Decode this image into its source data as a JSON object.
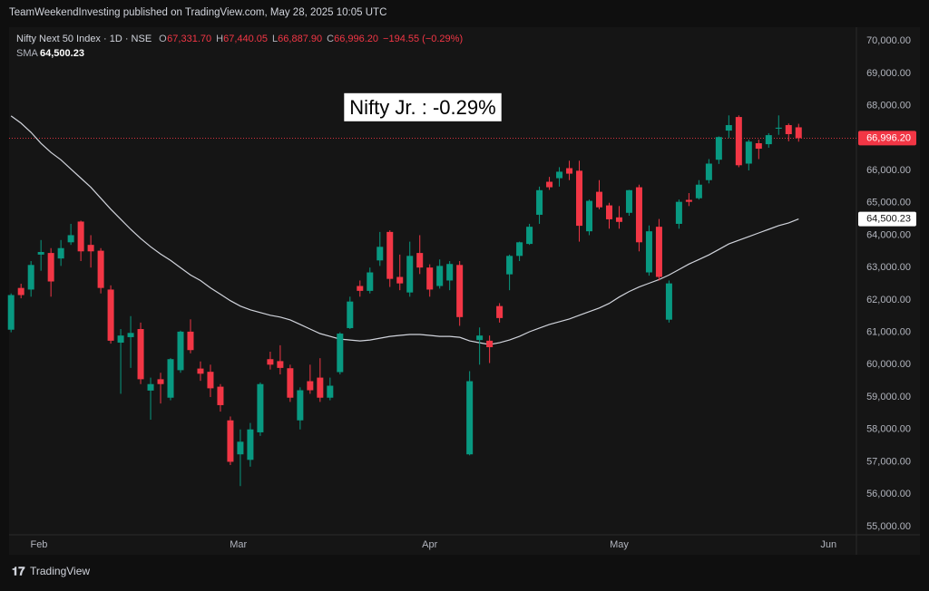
{
  "published": "TeamWeekendInvesting published on TradingView.com, May 28, 2025 10:05 UTC",
  "brand": "TradingView",
  "header": {
    "symbol": "Nifty Next 50 Index · 1D · NSE",
    "ohlc": [
      {
        "key": "O",
        "value": "67,331.70"
      },
      {
        "key": "H",
        "value": "67,440.05"
      },
      {
        "key": "L",
        "value": "66,887.90"
      },
      {
        "key": "C",
        "value": "66,996.20"
      }
    ],
    "change": "−194.55 (−0.29%)",
    "indicator": "SMA",
    "indicator_value": "64,500.23"
  },
  "chart_data": {
    "type": "candlestick",
    "annotation": "Nifty Jr. : -0.29%",
    "up_color": "#089981",
    "down_color": "#f23645",
    "categories": [
      null,
      null,
      null,
      null,
      null,
      null,
      null,
      null,
      null,
      null,
      null,
      null,
      null,
      null,
      null,
      null,
      null,
      null,
      null,
      null,
      null,
      null,
      null,
      null,
      null,
      null,
      null,
      null,
      null,
      null,
      null,
      null,
      null,
      null,
      null,
      null,
      null,
      null,
      null,
      null,
      null,
      null,
      null,
      null,
      null,
      null,
      null,
      null,
      null,
      null,
      null,
      null,
      null,
      null,
      null,
      null,
      null,
      null,
      null,
      null,
      null,
      null,
      null,
      null,
      null,
      null,
      null,
      null,
      null,
      null,
      null,
      null,
      null,
      null,
      null,
      null,
      null,
      null,
      null,
      null
    ],
    "open": [
      61080,
      62370,
      62320,
      63400,
      63450,
      63280,
      63780,
      64420,
      63700,
      63520,
      62320,
      60680,
      60850,
      61100,
      59200,
      59550,
      58980,
      59830,
      61020,
      59880,
      59780,
      59320,
      58280,
      57230,
      57060,
      57910,
      60170,
      60110,
      59890,
      58280,
      59490,
      59600,
      58980,
      59770,
      61130,
      62430,
      62280,
      63220,
      64100,
      62710,
      62230,
      63450,
      63000,
      62430,
      62600,
      63080,
      57230,
      60760,
      60740,
      61810,
      62790,
      63360,
      63730,
      64630,
      65650,
      65760,
      66070,
      65990,
      64120,
      65340,
      64920,
      64550,
      64690,
      65480,
      62850,
      64260,
      61390,
      64350,
      65090,
      65140,
      65700,
      66330,
      67230,
      67650,
      66210,
      66840,
      66810,
      67290,
      67400,
      67331.7
    ],
    "high": [
      62200,
      62500,
      63200,
      63850,
      63600,
      63850,
      64350,
      64450,
      64000,
      63600,
      62450,
      61100,
      61500,
      61300,
      59600,
      59750,
      60200,
      61050,
      61400,
      60100,
      60000,
      59400,
      58400,
      58000,
      58200,
      59450,
      60400,
      60600,
      60000,
      59300,
      60000,
      60200,
      59600,
      61000,
      62100,
      62600,
      63000,
      64100,
      64150,
      63400,
      63800,
      64000,
      63100,
      63250,
      63200,
      63200,
      59800,
      61150,
      60900,
      61900,
      63400,
      63800,
      64350,
      65500,
      65800,
      66100,
      66300,
      66300,
      65100,
      65700,
      65000,
      64900,
      65400,
      65560,
      64300,
      64500,
      62600,
      65100,
      65300,
      65700,
      66350,
      67050,
      67700,
      67700,
      66950,
      66950,
      67150,
      67700,
      67450,
      67440.05
    ],
    "low": [
      61000,
      62050,
      62100,
      62900,
      62100,
      63050,
      63700,
      63200,
      63000,
      62200,
      60650,
      59100,
      59900,
      59400,
      58300,
      58800,
      58900,
      59750,
      60350,
      59500,
      59000,
      58550,
      56900,
      56250,
      56850,
      57800,
      59850,
      59700,
      58850,
      58000,
      59100,
      58850,
      58900,
      59700,
      61100,
      62100,
      62200,
      63050,
      62400,
      62300,
      62100,
      62800,
      62100,
      62350,
      62300,
      61200,
      57200,
      60000,
      60050,
      61300,
      62300,
      63200,
      63700,
      64350,
      65400,
      65500,
      65700,
      63800,
      64000,
      64800,
      64200,
      64200,
      64600,
      63500,
      62750,
      62600,
      61300,
      64200,
      64900,
      65100,
      65600,
      66200,
      67000,
      66100,
      66000,
      66350,
      66700,
      67100,
      66900,
      66887.9
    ],
    "close": [
      62150,
      62150,
      63080,
      63480,
      62570,
      63600,
      64000,
      63500,
      63500,
      62370,
      60740,
      60900,
      60980,
      59550,
      59400,
      59400,
      60170,
      61020,
      60450,
      59720,
      59270,
      58750,
      57000,
      57620,
      58000,
      59400,
      60000,
      59900,
      58980,
      59210,
      59210,
      58980,
      59350,
      60960,
      61950,
      62280,
      62850,
      63640,
      62650,
      62510,
      63360,
      63000,
      62320,
      63050,
      63110,
      61470,
      59490,
      60900,
      60540,
      61440,
      63360,
      63780,
      64260,
      65390,
      65480,
      65960,
      65900,
      64290,
      65060,
      64860,
      64490,
      64410,
      65390,
      63780,
      64120,
      62710,
      62510,
      65030,
      65030,
      65560,
      66210,
      67030,
      67400,
      66160,
      66890,
      66670,
      67090,
      67320,
      67120,
      66996.2
    ],
    "series": [
      {
        "name": "SMA",
        "color": "#d1d4dc",
        "values": [
          67684,
          67458,
          67175,
          66836,
          66554,
          66328,
          66045,
          65763,
          65480,
          65141,
          64802,
          64491,
          64181,
          63898,
          63644,
          63418,
          63220,
          62994,
          62768,
          62598,
          62373,
          62175,
          61977,
          61808,
          61695,
          61610,
          61525,
          61469,
          61384,
          61243,
          61101,
          60960,
          60875,
          60791,
          60762,
          60734,
          60762,
          60819,
          60875,
          60904,
          60932,
          60932,
          60904,
          60875,
          60875,
          60847,
          60734,
          60678,
          60621,
          60678,
          60762,
          60875,
          61017,
          61130,
          61243,
          61328,
          61412,
          61525,
          61638,
          61751,
          61892,
          62090,
          62260,
          62401,
          62514,
          62627,
          62768,
          62938,
          63107,
          63248,
          63390,
          63559,
          63729,
          63842,
          63955,
          64068,
          64181,
          64294,
          64378,
          64500.23
        ]
      }
    ],
    "last_price": {
      "value": 66996.2,
      "label": "66,996.20",
      "color": "#f23645"
    },
    "sma_price": {
      "value": 64500.23,
      "label": "64,500.23"
    },
    "xlim": [
      -0.2,
      84.8
    ],
    "xticks": [
      {
        "value": 2.8,
        "label": "Feb"
      },
      {
        "value": 22.8,
        "label": "Mar"
      },
      {
        "value": 42,
        "label": "Apr"
      },
      {
        "value": 61,
        "label": "May"
      },
      {
        "value": 82,
        "label": "Jun"
      }
    ],
    "ylim": [
      54745,
      70424
    ],
    "yticks": [
      {
        "value": 55000,
        "label": "55,000.00"
      },
      {
        "value": 56000,
        "label": "56,000.00"
      },
      {
        "value": 57000,
        "label": "57,000.00"
      },
      {
        "value": 58000,
        "label": "58,000.00"
      },
      {
        "value": 59000,
        "label": "59,000.00"
      },
      {
        "value": 60000,
        "label": "60,000.00"
      },
      {
        "value": 61000,
        "label": "61,000.00"
      },
      {
        "value": 62000,
        "label": "62,000.00"
      },
      {
        "value": 63000,
        "label": "63,000.00"
      },
      {
        "value": 64000,
        "label": "64,000.00"
      },
      {
        "value": 65000,
        "label": "65,000.00"
      },
      {
        "value": 66000,
        "label": "66,000.00"
      },
      {
        "value": 67000,
        "label": "67,000.00"
      },
      {
        "value": 68000,
        "label": "68,000.00"
      },
      {
        "value": 69000,
        "label": "69,000.00"
      },
      {
        "value": 70000,
        "label": "70,000.00"
      }
    ],
    "grid": false
  }
}
